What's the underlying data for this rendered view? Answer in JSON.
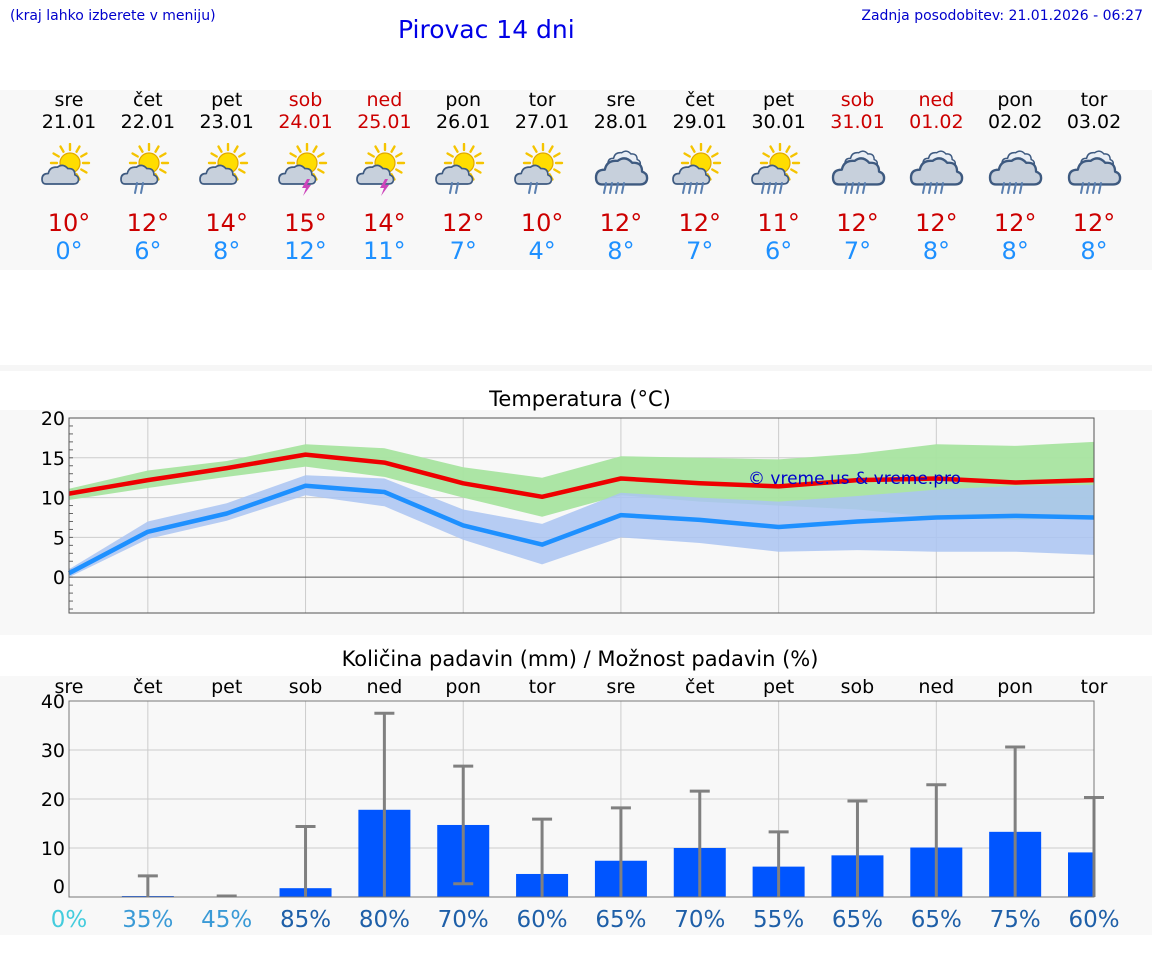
{
  "header": {
    "note": "(kraj lahko izberete v meniju)",
    "title": "Pirovac 14 dni",
    "updated": "Zadnja posodobitev: 21.01.2026 - 06:27"
  },
  "days": [
    {
      "name": "sre",
      "date": "21.01",
      "weekend": false,
      "icon": "sun-cloud-icon",
      "tmax": "10°",
      "tmin": "0°"
    },
    {
      "name": "čet",
      "date": "22.01",
      "weekend": false,
      "icon": "sun-cloud-rain-icon",
      "tmax": "12°",
      "tmin": "6°"
    },
    {
      "name": "pet",
      "date": "23.01",
      "weekend": false,
      "icon": "sun-cloud-icon",
      "tmax": "14°",
      "tmin": "8°"
    },
    {
      "name": "sob",
      "date": "24.01",
      "weekend": true,
      "icon": "sun-cloud-thunder-icon",
      "tmax": "15°",
      "tmin": "12°"
    },
    {
      "name": "ned",
      "date": "25.01",
      "weekend": true,
      "icon": "sun-cloud-thunder-icon",
      "tmax": "14°",
      "tmin": "11°"
    },
    {
      "name": "pon",
      "date": "26.01",
      "weekend": false,
      "icon": "sun-cloud-rain-icon",
      "tmax": "12°",
      "tmin": "7°"
    },
    {
      "name": "tor",
      "date": "27.01",
      "weekend": false,
      "icon": "sun-cloud-rain-icon",
      "tmax": "10°",
      "tmin": "4°"
    },
    {
      "name": "sre",
      "date": "28.01",
      "weekend": false,
      "icon": "cloud-heavy-rain-icon",
      "tmax": "12°",
      "tmin": "8°"
    },
    {
      "name": "čet",
      "date": "29.01",
      "weekend": false,
      "icon": "sun-cloud-heavy-rain-icon",
      "tmax": "12°",
      "tmin": "7°"
    },
    {
      "name": "pet",
      "date": "30.01",
      "weekend": false,
      "icon": "sun-cloud-heavy-rain-icon",
      "tmax": "11°",
      "tmin": "6°"
    },
    {
      "name": "sob",
      "date": "31.01",
      "weekend": true,
      "icon": "cloud-rain-icon",
      "tmax": "12°",
      "tmin": "7°"
    },
    {
      "name": "ned",
      "date": "01.02",
      "weekend": true,
      "icon": "cloud-rain-icon",
      "tmax": "12°",
      "tmin": "8°"
    },
    {
      "name": "pon",
      "date": "02.02",
      "weekend": false,
      "icon": "cloud-rain-icon",
      "tmax": "12°",
      "tmin": "8°"
    },
    {
      "name": "tor",
      "date": "03.02",
      "weekend": false,
      "icon": "cloud-rain-icon",
      "tmax": "12°",
      "tmin": "8°"
    }
  ],
  "colors": {
    "max_line": "#ee0000",
    "min_line": "#1e90ff",
    "max_band": "#a8e4a0",
    "min_band": "#aac4f2",
    "bar": "#0055ff",
    "whisker": "#808080"
  },
  "chart_data": [
    {
      "type": "line",
      "title": "Temperatura (°C)",
      "ylim": [
        -4.5,
        20
      ],
      "yticks": [
        0,
        5,
        10,
        15,
        20
      ],
      "x": [
        0,
        1,
        2,
        3,
        4,
        5,
        6,
        7,
        8,
        9,
        10,
        11,
        12,
        13
      ],
      "watermark": "© vreme.us & vreme.pro",
      "series": [
        {
          "name": "max",
          "values": [
            10.5,
            12.2,
            13.7,
            15.4,
            14.4,
            11.8,
            10.1,
            12.4,
            11.8,
            11.4,
            12.2,
            12.4,
            11.9,
            12.2
          ]
        },
        {
          "name": "max_low",
          "values": [
            9.7,
            11.2,
            12.6,
            13.9,
            12.6,
            10.0,
            7.6,
            10.3,
            9.5,
            9.0,
            8.5,
            7.5,
            7.2,
            7.5
          ]
        },
        {
          "name": "max_high",
          "values": [
            11.1,
            13.4,
            14.6,
            16.7,
            16.2,
            13.8,
            12.5,
            15.2,
            15.0,
            14.8,
            15.5,
            16.7,
            16.5,
            17.0
          ]
        },
        {
          "name": "min",
          "values": [
            0.5,
            5.7,
            8.0,
            11.5,
            10.7,
            6.5,
            4.1,
            7.8,
            7.2,
            6.3,
            7.0,
            7.5,
            7.7,
            7.5
          ]
        },
        {
          "name": "min_low",
          "values": [
            0.0,
            4.8,
            7.1,
            10.3,
            8.9,
            4.7,
            1.6,
            5.0,
            4.3,
            3.2,
            3.4,
            3.2,
            3.2,
            2.8
          ]
        },
        {
          "name": "min_high",
          "values": [
            1.0,
            7.0,
            9.3,
            12.8,
            12.4,
            8.5,
            6.7,
            10.6,
            10.0,
            9.5,
            10.2,
            11.0,
            11.5,
            11.6
          ]
        }
      ]
    },
    {
      "type": "bar",
      "title": "Količina padavin (mm) / Možnost padavin (%)",
      "ylim": [
        0,
        40
      ],
      "yticks": [
        0,
        10,
        20,
        30,
        40
      ],
      "categories": [
        "sre",
        "čet",
        "pet",
        "sob",
        "ned",
        "pon",
        "tor",
        "sre",
        "čet",
        "pet",
        "sob",
        "ned",
        "pon",
        "tor"
      ],
      "values": [
        0,
        0.2,
        0.1,
        1.8,
        17.8,
        14.7,
        4.7,
        7.4,
        10.0,
        6.2,
        8.5,
        10.1,
        13.3,
        9.1
      ],
      "error_high": [
        0,
        4.3,
        0.2,
        14.4,
        37.5,
        26.7,
        15.9,
        18.2,
        21.6,
        13.3,
        19.6,
        22.9,
        30.6,
        20.3
      ],
      "error_low": [
        0,
        0,
        0,
        0,
        0,
        2.7,
        0,
        0,
        0,
        0,
        0,
        0,
        0,
        0
      ],
      "probability": [
        "0%",
        "35%",
        "45%",
        "85%",
        "80%",
        "70%",
        "60%",
        "65%",
        "70%",
        "55%",
        "65%",
        "65%",
        "75%",
        "60%"
      ],
      "probability_colors": [
        "#44ccdd",
        "#3a9ad6",
        "#3a9ad6",
        "#1e5fa8",
        "#1e5fa8",
        "#1e5fa8",
        "#1e5fa8",
        "#1e5fa8",
        "#1e5fa8",
        "#1e5fa8",
        "#1e5fa8",
        "#1e5fa8",
        "#1e5fa8",
        "#1e5fa8"
      ]
    }
  ]
}
